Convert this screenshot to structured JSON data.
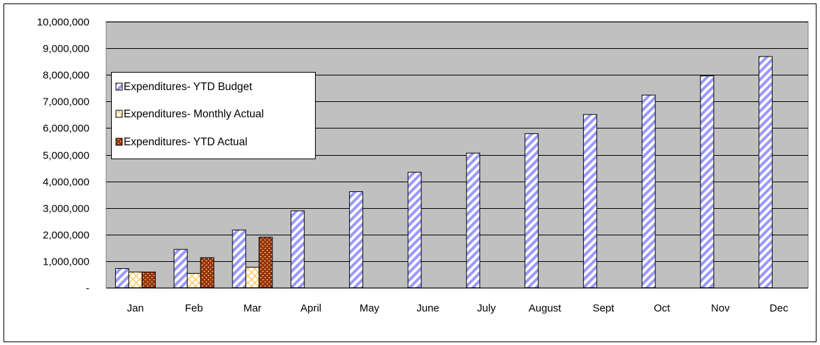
{
  "chart_data": {
    "type": "bar",
    "title": "",
    "xlabel": "",
    "ylabel": "",
    "ylim": [
      0,
      10000000
    ],
    "y_ticks": [
      0,
      1000000,
      2000000,
      3000000,
      4000000,
      5000000,
      6000000,
      7000000,
      8000000,
      9000000,
      10000000
    ],
    "y_tick_labels": [
      "-",
      "1,000,000",
      "2,000,000",
      "3,000,000",
      "4,000,000",
      "5,000,000",
      "6,000,000",
      "7,000,000",
      "8,000,000",
      "9,000,000",
      "10,000,000"
    ],
    "grid": true,
    "plot_background": "#c0c0c0",
    "legend_position": "top-left",
    "categories": [
      "Jan",
      "Feb",
      "Mar",
      "April",
      "May",
      "June",
      "July",
      "August",
      "Sept",
      "Oct",
      "Nov",
      "Dec"
    ],
    "series": [
      {
        "name": "Expenditures-  YTD Budget",
        "color": "#9999ff",
        "pattern": "diagonal-stripes",
        "values": [
          720000,
          1440000,
          2170000,
          2890000,
          3610000,
          4340000,
          5060000,
          5790000,
          6510000,
          7240000,
          7960000,
          8690000
        ]
      },
      {
        "name": "Expenditures- Monthly Actual",
        "color": "#ffcc66",
        "pattern": "crosshatch",
        "values": [
          590000,
          540000,
          770000,
          null,
          null,
          null,
          null,
          null,
          null,
          null,
          null,
          null
        ]
      },
      {
        "name": "Expenditures- YTD Actual",
        "color": "#993300",
        "pattern": "dots",
        "values": [
          590000,
          1130000,
          1900000,
          null,
          null,
          null,
          null,
          null,
          null,
          null,
          null,
          null
        ]
      }
    ]
  }
}
